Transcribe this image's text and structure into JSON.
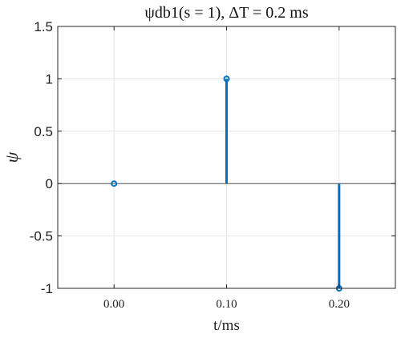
{
  "chart_data": {
    "type": "stem",
    "title": "ψdb1(s = 1), ΔT = 0.2 ms",
    "xlabel": "t/ms",
    "ylabel": "ψ",
    "x": [
      0.0,
      0.1,
      0.2
    ],
    "y": [
      0,
      1,
      -1
    ],
    "xlim": [
      -0.05,
      0.25
    ],
    "ylim": [
      -1,
      1.5
    ],
    "xticks": [
      0.0,
      0.1,
      0.2
    ],
    "xtick_labels": [
      "0.00",
      "0.10",
      "0.20"
    ],
    "yticks": [
      -1,
      -0.5,
      0,
      0.5,
      1,
      1.5
    ],
    "ytick_labels": [
      "-1",
      "-0.5",
      "0",
      "0.5",
      "1",
      "1.5"
    ],
    "grid": true,
    "baseline": 0,
    "colors": {
      "stem": "#0072BD",
      "axes": "#262626",
      "grid": "#e6e6e6"
    }
  }
}
